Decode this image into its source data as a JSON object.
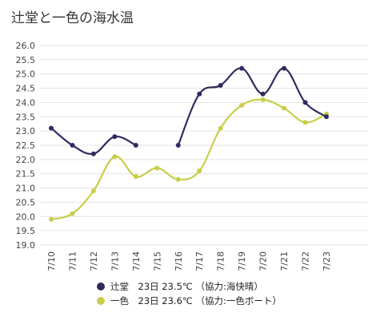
{
  "chart_data": {
    "type": "line",
    "title": "辻堂と一色の海水温",
    "categories": [
      "7/10",
      "7/11",
      "7/12",
      "7/13",
      "7/14",
      "7/15",
      "7/16",
      "7/17",
      "7/18",
      "7/19",
      "7/20",
      "7/21",
      "7/22",
      "7/23"
    ],
    "ylim": [
      19.0,
      26.0
    ],
    "yticks": [
      "19.0",
      "19.5",
      "20.0",
      "20.5",
      "21.0",
      "21.5",
      "22.0",
      "22.5",
      "23.0",
      "23.5",
      "24.0",
      "24.5",
      "25.0",
      "25.5",
      "26.0"
    ],
    "grid": true,
    "legend_position": "bottom",
    "series": [
      {
        "name": "辻堂",
        "legend_label": "辻堂　23日 23.5℃ （協力:海快晴）",
        "color": "#2e2b5f",
        "values": [
          23.1,
          22.5,
          22.2,
          22.8,
          22.5,
          null,
          22.5,
          24.3,
          24.6,
          25.2,
          24.3,
          25.2,
          24.0,
          23.5
        ]
      },
      {
        "name": "一色",
        "legend_label": "一色　23日 23.6℃ （協力:一色ボート）",
        "color": "#c9cd4a",
        "values": [
          19.9,
          20.1,
          20.9,
          22.1,
          21.4,
          21.7,
          21.3,
          21.6,
          23.1,
          23.9,
          24.1,
          23.8,
          23.3,
          23.6
        ]
      }
    ]
  }
}
